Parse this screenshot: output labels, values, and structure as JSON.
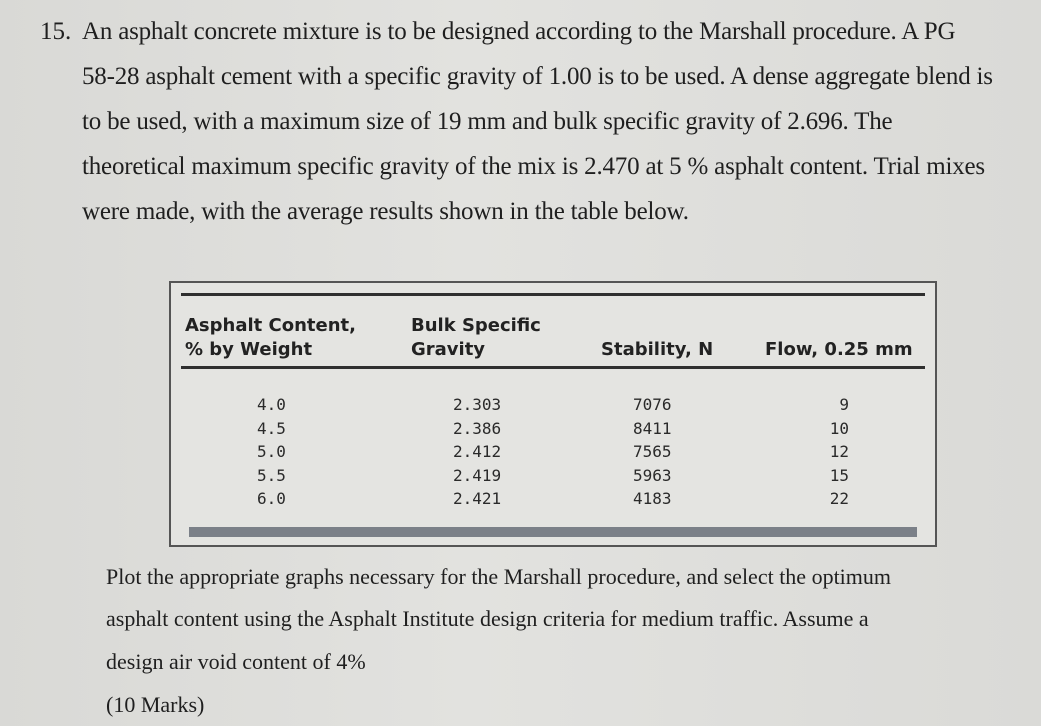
{
  "question": {
    "number": "15.",
    "lines": [
      "An asphalt concrete mixture is to be designed according to the Marshall procedure. A PG",
      "58-28 asphalt cement with a specific gravity of 1.00 is to be used. A dense aggregate blend is",
      "to be used, with a maximum size of 19 mm and bulk specific gravity of 2.696. The",
      "theoretical maximum specific gravity of the mix is 2.470 at 5 % asphalt content. Trial mixes",
      "were made, with the average results shown in the table below."
    ]
  },
  "table": {
    "headers": [
      [
        "Asphalt Content,",
        "% by Weight"
      ],
      [
        "Bulk Specific",
        "Gravity"
      ],
      [
        "Stability, N"
      ],
      [
        "Flow, 0.25 mm"
      ]
    ],
    "columns": [
      [
        "4.0",
        "4.5",
        "5.0",
        "5.5",
        "6.0"
      ],
      [
        "2.303",
        "2.386",
        "2.412",
        "2.419",
        "2.421"
      ],
      [
        "7076",
        "8411",
        "7565",
        "5963",
        "4183"
      ],
      [
        "9",
        "10",
        "12",
        "15",
        "22"
      ]
    ]
  },
  "prompt": {
    "lines": [
      "Plot the appropriate graphs necessary for the Marshall procedure, and select the optimum",
      "asphalt content using the Asphalt Institute design criteria for medium traffic. Assume a",
      "design air void content of 4%",
      "(10 Marks)"
    ]
  }
}
